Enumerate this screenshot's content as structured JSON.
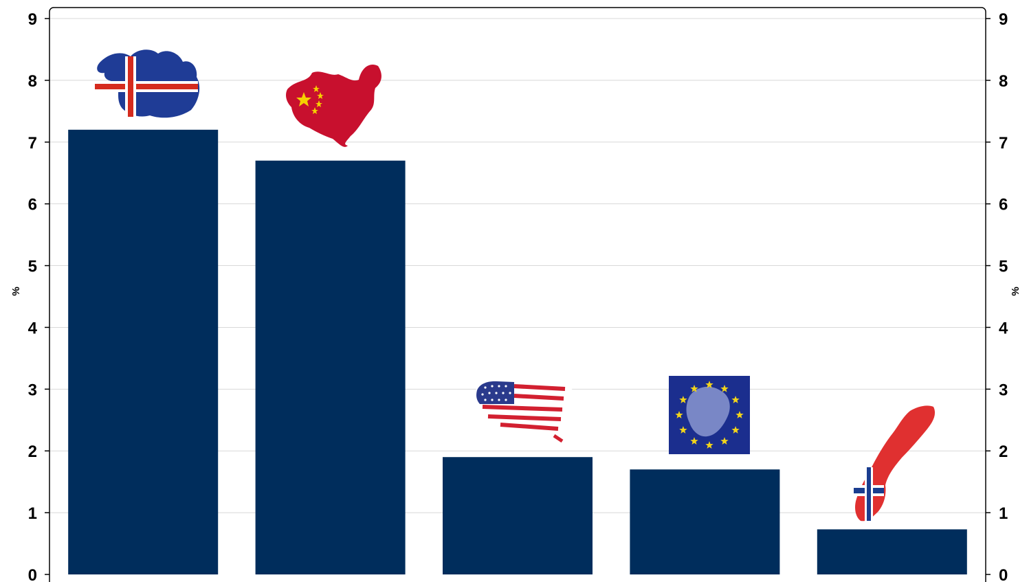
{
  "chart_data": {
    "type": "bar",
    "categories": [
      "Iceland",
      "China",
      "USA",
      "EU",
      "Norway"
    ],
    "values": [
      7.2,
      6.7,
      1.9,
      1.7,
      0.73
    ],
    "ylim": [
      0,
      9
    ],
    "yticks": [
      "0",
      "1",
      "2",
      "3",
      "4",
      "5",
      "6",
      "7",
      "8",
      "9"
    ],
    "ylabel_left": "%",
    "ylabel_right": "%",
    "grid": true,
    "legend": "none",
    "bar_color": "#002d5c",
    "category_icons": [
      "iceland-map-flag-icon",
      "china-map-flag-icon",
      "usa-map-flag-icon",
      "eu-flag-icon",
      "norway-map-flag-icon"
    ]
  },
  "colors": {
    "grid": "#d8d8d8",
    "axis": "#000000",
    "iceland_blue": "#1f3c96",
    "iceland_red": "#d52b1e",
    "china_red": "#c8102e",
    "china_star": "#f5d000",
    "usa_red": "#d22030",
    "usa_blue": "#2a3a8c",
    "eu_blue": "#1b2e8e",
    "eu_star": "#f2d41a",
    "norway_red": "#e03030",
    "norway_blue": "#1a3d8f"
  }
}
